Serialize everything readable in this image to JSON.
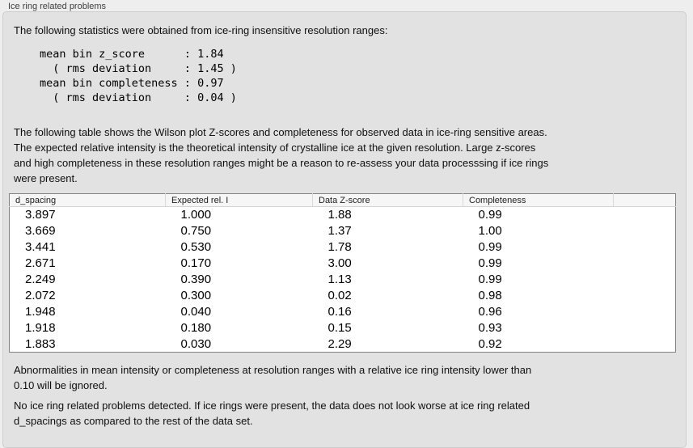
{
  "group": {
    "title": "Ice ring related problems"
  },
  "stats": {
    "intro": "The following statistics were obtained from ice-ring insensitive resolution ranges:",
    "block": "mean bin z_score      : 1.84\n  ( rms deviation     : 1.45 )\nmean bin completeness : 0.97\n  ( rms deviation     : 0.04 )",
    "mean_bin_z_score": "1.84",
    "z_score_rms_deviation": "1.45",
    "mean_bin_completeness": "0.97",
    "completeness_rms_deviation": "0.04"
  },
  "description": "The following table shows the Wilson plot Z-scores and completeness for observed data in ice-ring sensitive areas.\nThe expected relative intensity is the theoretical intensity of crystalline ice at the given resolution. Large z-scores\nand high completeness in these resolution ranges might be a reason to re-assess your data processsing if ice rings\nwere present.",
  "table": {
    "columns": [
      "d_spacing",
      "Expected rel. I",
      "Data Z-score",
      "Completeness"
    ],
    "rows": [
      [
        "3.897",
        "1.000",
        "1.88",
        "0.99"
      ],
      [
        "3.669",
        "0.750",
        "1.37",
        "1.00"
      ],
      [
        "3.441",
        "0.530",
        "1.78",
        "0.99"
      ],
      [
        "2.671",
        "0.170",
        "3.00",
        "0.99"
      ],
      [
        "2.249",
        "0.390",
        "1.13",
        "0.99"
      ],
      [
        "2.072",
        "0.300",
        "0.02",
        "0.98"
      ],
      [
        "1.948",
        "0.040",
        "0.16",
        "0.96"
      ],
      [
        "1.918",
        "0.180",
        "0.15",
        "0.93"
      ],
      [
        "1.883",
        "0.030",
        "2.29",
        "0.92"
      ]
    ]
  },
  "notes": {
    "ignore": "Abnormalities in mean intensity or completeness at resolution ranges with a relative ice ring intensity lower than\n0.10 will be ignored.",
    "conclusion": "No ice ring related problems detected. If ice rings were present, the data does not look worse at ice ring related\nd_spacings as compared to the rest of the data set."
  }
}
